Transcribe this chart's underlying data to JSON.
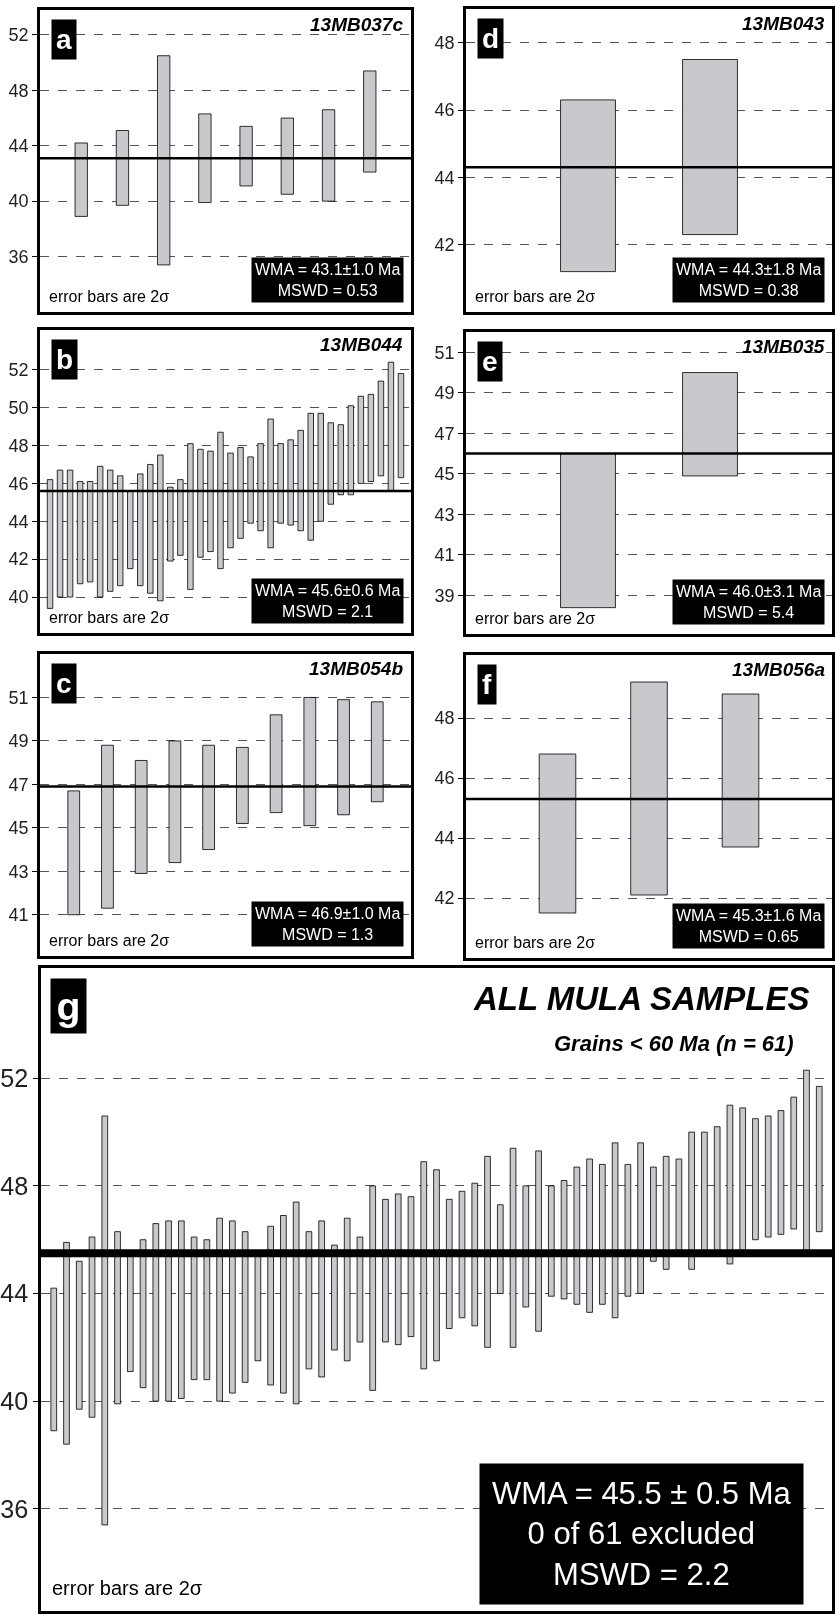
{
  "chart_data": [
    {
      "type": "bar",
      "title": "13MB037c",
      "categories": [
        null,
        null,
        null,
        null,
        null,
        null,
        null,
        null
      ],
      "base": [
        38.9,
        39.7,
        35.4,
        39.9,
        41.1,
        40.5,
        40.0,
        42.1
      ],
      "values": [
        5.3,
        5.4,
        15.1,
        6.4,
        4.3,
        5.5,
        6.6,
        7.3
      ],
      "color": "#c8c9cc",
      "ylim": [
        32.0,
        53.8
      ],
      "yticks": [
        36,
        40,
        44,
        48,
        52
      ],
      "grid": "y",
      "tick_labels": "y",
      "ref_lines": [
        {
          "axis": "y",
          "value": 43.1,
          "color": "#000000"
        }
      ],
      "annotations": [
        "a",
        "error bars are 2σ",
        "WMA = 43.1±1.0 Ma\nMSWD = 0.53"
      ]
    },
    {
      "type": "bar",
      "title": "13MB044",
      "categories": [
        null,
        null,
        null,
        null,
        null,
        null,
        null,
        null,
        null,
        null,
        null,
        null,
        null,
        null,
        null,
        null,
        null,
        null,
        null,
        null,
        null,
        null,
        null,
        null,
        null,
        null,
        null,
        null,
        null,
        null,
        null,
        null,
        null,
        null,
        null,
        null
      ],
      "base": [
        39.4,
        40.0,
        40.0,
        40.7,
        40.8,
        40.0,
        40.3,
        40.6,
        41.5,
        40.6,
        40.2,
        39.8,
        41.9,
        42.2,
        40.4,
        42.1,
        42.4,
        41.5,
        42.6,
        43.1,
        43.9,
        43.5,
        42.6,
        43.9,
        43.8,
        43.5,
        43.0,
        44.0,
        44.9,
        45.4,
        45.4,
        46.0,
        46.1,
        46.4,
        45.6,
        46.3
      ],
      "values": [
        6.8,
        6.7,
        6.7,
        5.4,
        5.3,
        6.9,
        6.4,
        5.8,
        4.1,
        5.9,
        6.8,
        7.7,
        3.9,
        4.0,
        7.7,
        5.7,
        5.3,
        7.2,
        5.0,
        4.8,
        3.5,
        4.6,
        6.8,
        4.2,
        4.5,
        5.3,
        6.7,
        5.7,
        4.3,
        3.7,
        4.7,
        4.6,
        4.6,
        5.0,
        6.8,
        5.5
      ],
      "color": "#c8c9cc",
      "ylim": [
        38.1,
        54.1
      ],
      "yticks": [
        40,
        42,
        44,
        46,
        48,
        50,
        52
      ],
      "grid": "y",
      "tick_labels": "y",
      "ref_lines": [
        {
          "axis": "y",
          "value": 45.6,
          "color": "#000000"
        }
      ],
      "annotations": [
        "b",
        "error bars are 2σ",
        "WMA = 45.6±0.6 Ma\nMSWD = 2.1"
      ]
    },
    {
      "type": "bar",
      "title": "13MB054b",
      "categories": [
        null,
        null,
        null,
        null,
        null,
        null,
        null,
        null,
        null,
        null
      ],
      "base": [
        41.0,
        41.3,
        42.9,
        43.4,
        44.0,
        45.2,
        45.7,
        45.1,
        45.6,
        46.2
      ],
      "values": [
        5.7,
        7.5,
        5.2,
        5.6,
        4.8,
        3.5,
        4.5,
        5.9,
        5.3,
        4.6
      ],
      "color": "#c8c9cc",
      "ylim": [
        39.1,
        53.0
      ],
      "yticks": [
        41,
        43,
        45,
        47,
        49,
        51
      ],
      "grid": "y",
      "tick_labels": "y",
      "ref_lines": [
        {
          "axis": "y",
          "value": 46.9,
          "color": "#000000"
        }
      ],
      "annotations": [
        "c",
        "error bars are 2σ",
        "WMA = 46.9±1.0 Ma\nMSWD = 1.3"
      ]
    },
    {
      "type": "bar",
      "title": "13MB043",
      "categories": [
        null,
        null
      ],
      "base": [
        41.2,
        42.3
      ],
      "values": [
        5.1,
        5.2
      ],
      "color": "#c8c9cc",
      "ylim": [
        40.0,
        49.0
      ],
      "yticks": [
        42,
        44,
        46,
        48
      ],
      "grid": "y",
      "tick_labels": "y",
      "ref_lines": [
        {
          "axis": "y",
          "value": 44.3,
          "color": "#000000"
        }
      ],
      "annotations": [
        "d",
        "error bars are 2σ",
        "WMA = 44.3±1.8 Ma\nMSWD = 0.38"
      ]
    },
    {
      "type": "bar",
      "title": "13MB035",
      "categories": [
        null,
        null
      ],
      "base": [
        38.4,
        44.9
      ],
      "values": [
        7.6,
        5.1
      ],
      "color": "#c8c9cc",
      "ylim": [
        37.1,
        52.0
      ],
      "yticks": [
        39,
        41,
        43,
        45,
        47,
        49,
        51
      ],
      "grid": "y",
      "tick_labels": "y",
      "ref_lines": [
        {
          "axis": "y",
          "value": 46.0,
          "color": "#000000"
        }
      ],
      "annotations": [
        "e",
        "error bars are 2σ",
        "WMA = 46.0±3.1 Ma\nMSWD = 5.4"
      ]
    },
    {
      "type": "bar",
      "title": "13MB056a",
      "categories": [
        null,
        null,
        null
      ],
      "base": [
        41.5,
        42.1,
        43.7
      ],
      "values": [
        5.3,
        7.1,
        5.1
      ],
      "color": "#c8c9cc",
      "ylim": [
        40.0,
        50.1
      ],
      "yticks": [
        42,
        44,
        46,
        48
      ],
      "grid": "y",
      "tick_labels": "y",
      "ref_lines": [
        {
          "axis": "y",
          "value": 45.3,
          "color": "#000000"
        }
      ],
      "annotations": [
        "f",
        "error bars are 2σ",
        "WMA = 45.3±1.6 Ma\nMSWD = 0.65"
      ]
    },
    {
      "type": "bar",
      "title": "ALL MULA SAMPLES",
      "subtitle": "Grains < 60 Ma (n = 61)",
      "categories": [
        null,
        null,
        null,
        null,
        null,
        null,
        null,
        null,
        null,
        null,
        null,
        null,
        null,
        null,
        null,
        null,
        null,
        null,
        null,
        null,
        null,
        null,
        null,
        null,
        null,
        null,
        null,
        null,
        null,
        null,
        null,
        null,
        null,
        null,
        null,
        null,
        null,
        null,
        null,
        null,
        null,
        null,
        null,
        null,
        null,
        null,
        null,
        null,
        null,
        null,
        null,
        null,
        null,
        null,
        null,
        null,
        null,
        null,
        null,
        null,
        null
      ],
      "base": [
        38.9,
        38.4,
        39.7,
        39.4,
        35.4,
        39.9,
        41.1,
        40.5,
        40.0,
        40.0,
        40.1,
        40.8,
        40.8,
        40.0,
        40.3,
        40.7,
        41.5,
        40.6,
        40.3,
        39.9,
        41.2,
        40.9,
        41.9,
        41.5,
        42.2,
        40.4,
        42.2,
        42.1,
        42.4,
        41.2,
        41.5,
        42.7,
        43.1,
        42.8,
        42.0,
        44.0,
        42.0,
        43.5,
        42.6,
        43.9,
        43.8,
        43.6,
        43.3,
        43.6,
        43.1,
        43.9,
        44.0,
        45.2,
        44.9,
        45.6,
        44.9,
        45.6,
        45.6,
        45.1,
        45.6,
        46.0,
        46.1,
        46.2,
        46.4,
        45.6,
        46.3
      ],
      "values": [
        5.3,
        7.5,
        5.5,
        6.7,
        15.2,
        6.4,
        4.3,
        5.5,
        6.6,
        6.7,
        6.6,
        5.3,
        5.2,
        6.8,
        6.4,
        5.6,
        3.9,
        5.9,
        6.6,
        7.5,
        5.1,
        5.8,
        3.9,
        5.3,
        3.9,
        7.6,
        5.3,
        5.6,
        5.2,
        7.7,
        7.1,
        4.8,
        4.7,
        5.3,
        7.1,
        3.3,
        7.4,
        4.5,
        6.7,
        4.1,
        4.4,
        5.1,
        5.7,
        5.2,
        6.5,
        4.9,
        5.6,
        3.5,
        4.2,
        3.4,
        5.1,
        4.4,
        4.6,
        5.9,
        5.3,
        4.5,
        4.5,
        4.6,
        4.9,
        6.7,
        5.4
      ],
      "color": "#c8c9cc",
      "ylim": [
        32.2,
        56.1
      ],
      "yticks": [
        36,
        40,
        44,
        48,
        52
      ],
      "grid": "y",
      "tick_labels": "y",
      "ref_lines": [
        {
          "axis": "y",
          "value": 45.5,
          "color": "#000000"
        }
      ],
      "annotations": [
        "g",
        "error bars are 2σ",
        "WMA = 45.5 ± 0.5 Ma\n0 of 61 excluded\nMSWD = 2.2"
      ]
    }
  ]
}
